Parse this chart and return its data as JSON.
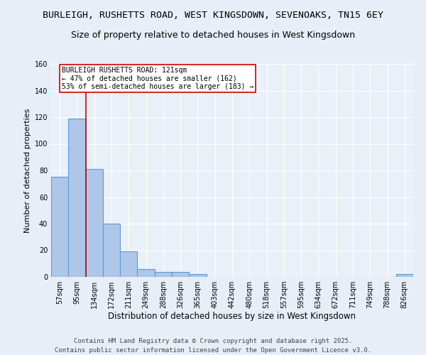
{
  "title1": "BURLEIGH, RUSHETTS ROAD, WEST KINGSDOWN, SEVENOAKS, TN15 6EY",
  "title2": "Size of property relative to detached houses in West Kingsdown",
  "xlabel": "Distribution of detached houses by size in West Kingsdown",
  "ylabel": "Number of detached properties",
  "categories": [
    "57sqm",
    "95sqm",
    "134sqm",
    "172sqm",
    "211sqm",
    "249sqm",
    "288sqm",
    "326sqm",
    "365sqm",
    "403sqm",
    "442sqm",
    "480sqm",
    "518sqm",
    "557sqm",
    "595sqm",
    "634sqm",
    "672sqm",
    "711sqm",
    "749sqm",
    "788sqm",
    "826sqm"
  ],
  "values": [
    75,
    119,
    81,
    40,
    19,
    6,
    4,
    4,
    2,
    0,
    0,
    0,
    0,
    0,
    0,
    0,
    0,
    0,
    0,
    0,
    2
  ],
  "bar_color": "#aec6e8",
  "bar_edge_color": "#5b9bd5",
  "vline_x": 1.5,
  "vline_color": "#cc0000",
  "annotation_text": "BURLEIGH RUSHETTS ROAD: 121sqm\n← 47% of detached houses are smaller (162)\n53% of semi-detached houses are larger (183) →",
  "annotation_box_color": "#ffffff",
  "annotation_box_edge": "#cc0000",
  "ylim": [
    0,
    160
  ],
  "yticks": [
    0,
    20,
    40,
    60,
    80,
    100,
    120,
    140,
    160
  ],
  "bg_color": "#e8eef7",
  "plot_bg_color": "#eaf0f8",
  "footer": "Contains HM Land Registry data © Crown copyright and database right 2025.\nContains public sector information licensed under the Open Government Licence v3.0.",
  "title1_fontsize": 9.5,
  "title2_fontsize": 9,
  "xlabel_fontsize": 8.5,
  "ylabel_fontsize": 8,
  "tick_fontsize": 7,
  "footer_fontsize": 6.5,
  "annot_fontsize": 7
}
